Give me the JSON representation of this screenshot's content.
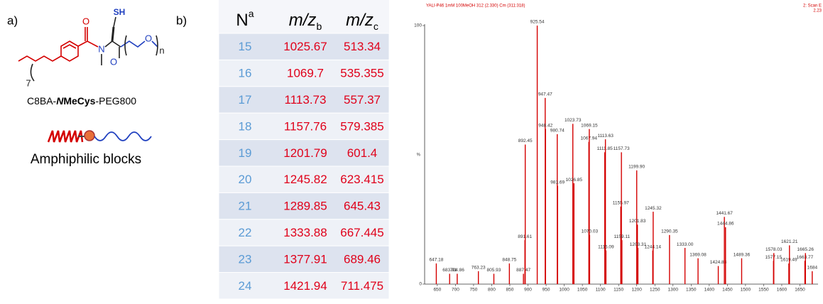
{
  "panel_a": {
    "label": "a)",
    "structure": {
      "carbonyl_o_1": "O",
      "amide_n": "N",
      "thiol": "SH",
      "carbonyl_o_2": "O",
      "ether_o": "O",
      "chain_count": "7",
      "repeat": "n"
    },
    "name_parts": [
      "C8BA-",
      "N",
      "MeCys",
      "-PEG800"
    ],
    "caption": "Amphiphilic blocks"
  },
  "panel_b": {
    "label": "b)"
  },
  "table": {
    "header": [
      {
        "text": "N",
        "sup": "a"
      },
      {
        "text": "m/z",
        "sub": "b"
      },
      {
        "text": "m/z",
        "sub": "c"
      }
    ],
    "rows": [
      [
        15,
        1025.67,
        513.34
      ],
      [
        16,
        1069.7,
        535.355
      ],
      [
        17,
        1113.73,
        557.37
      ],
      [
        18,
        1157.76,
        579.385
      ],
      [
        19,
        1201.79,
        601.4
      ],
      [
        20,
        1245.82,
        623.415
      ],
      [
        21,
        1289.85,
        645.43
      ],
      [
        22,
        1333.88,
        667.445
      ],
      [
        23,
        1377.91,
        689.46
      ],
      [
        24,
        1421.94,
        711.475
      ]
    ]
  },
  "chart_data": {
    "type": "stick",
    "header_left": "YALI-P46 1mM 100MeOH 312 (2.330) Cm (311:318)",
    "header_right": [
      "2: Scan E",
      "2.23"
    ],
    "y_label": "%",
    "color": "#d40000",
    "x": [
      647.18,
      683.91,
      704.86,
      763.23,
      805.93,
      848.75,
      887.47,
      891.61,
      892.45,
      925.54,
      947.47,
      948.42,
      980.74,
      981.69,
      1023.73,
      1026.85,
      1067.94,
      1069.15,
      1070.03,
      1111.85,
      1113.63,
      1115.09,
      1155.97,
      1157.73,
      1159.11,
      1199.9,
      1201.83,
      1203.31,
      1244.14,
      1245.32,
      1290.35,
      1333,
      1369.08,
      1424.88,
      1441.67,
      1444.86,
      1489.36,
      1577.15,
      1578.03,
      1619.49,
      1621.21,
      1663.77,
      1665.26,
      1684
    ],
    "peak_labels": [
      "647.18",
      "683.91",
      "704.86",
      "763.23",
      "805.93",
      "848.75",
      "887.47",
      "891.61",
      "892.45",
      "925.54",
      "947.47",
      "948.42",
      "980.74",
      "981.69",
      "1023.73",
      "1026.85",
      "1067.94",
      "1069.15",
      "1070.03",
      "1111.85",
      "1113.63",
      "1115.09",
      "1155.97",
      "1157.73",
      "1159.11",
      "1199.90",
      "1201.83",
      "1203.31",
      "1244.14",
      "1245.32",
      "1290.35",
      "1333.00",
      "1369.08",
      "1424.88",
      "1441.67",
      "1444.86",
      "1489.36",
      "1577.15",
      "1578.03",
      "1619.49",
      "1621.21",
      "1663.77",
      "1665.26",
      "1684"
    ],
    "values": [
      8,
      4,
      4,
      5,
      4,
      8,
      4,
      17,
      54,
      100,
      72,
      60,
      58,
      38,
      62,
      39,
      55,
      60,
      19,
      51,
      56,
      13,
      30,
      51,
      17,
      44,
      23,
      14,
      13,
      28,
      19,
      14,
      10,
      7,
      26,
      22,
      10,
      9,
      12,
      8,
      15,
      9,
      12,
      5
    ],
    "xlim": [
      615,
      1700
    ],
    "xticks": [
      650,
      700,
      750,
      800,
      850,
      900,
      950,
      1000,
      1050,
      1100,
      1150,
      1200,
      1250,
      1300,
      1350,
      1400,
      1450,
      1500,
      1550,
      1600,
      1650
    ],
    "ylim": [
      0,
      100
    ],
    "yticks": [
      0,
      100
    ]
  }
}
